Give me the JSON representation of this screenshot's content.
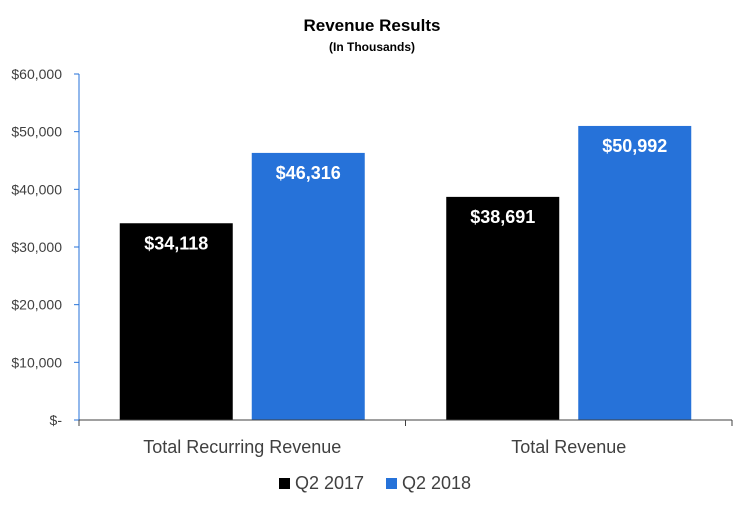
{
  "chart_data": {
    "type": "bar",
    "title": "Revenue Results",
    "subtitle": "(In Thousands)",
    "categories": [
      "Total Recurring Revenue",
      "Total Revenue"
    ],
    "series": [
      {
        "name": "Q2 2017",
        "color": "#000000",
        "values": [
          34118,
          38691
        ],
        "labels": [
          "$34,118",
          "$38,691"
        ]
      },
      {
        "name": "Q2 2018",
        "color": "#2672D9",
        "values": [
          46316,
          50992
        ],
        "labels": [
          "$46,316",
          "$50,992"
        ]
      }
    ],
    "ylim": [
      0,
      60000
    ],
    "yticks": [
      0,
      10000,
      20000,
      30000,
      40000,
      50000,
      60000
    ],
    "ytick_labels": [
      "$-",
      "$10,000",
      "$20,000",
      "$30,000",
      "$40,000",
      "$50,000",
      "$60,000"
    ],
    "xlabel": "",
    "ylabel": "",
    "grid": false,
    "legend_position": "bottom-center",
    "axis_color": "#2672D9"
  }
}
